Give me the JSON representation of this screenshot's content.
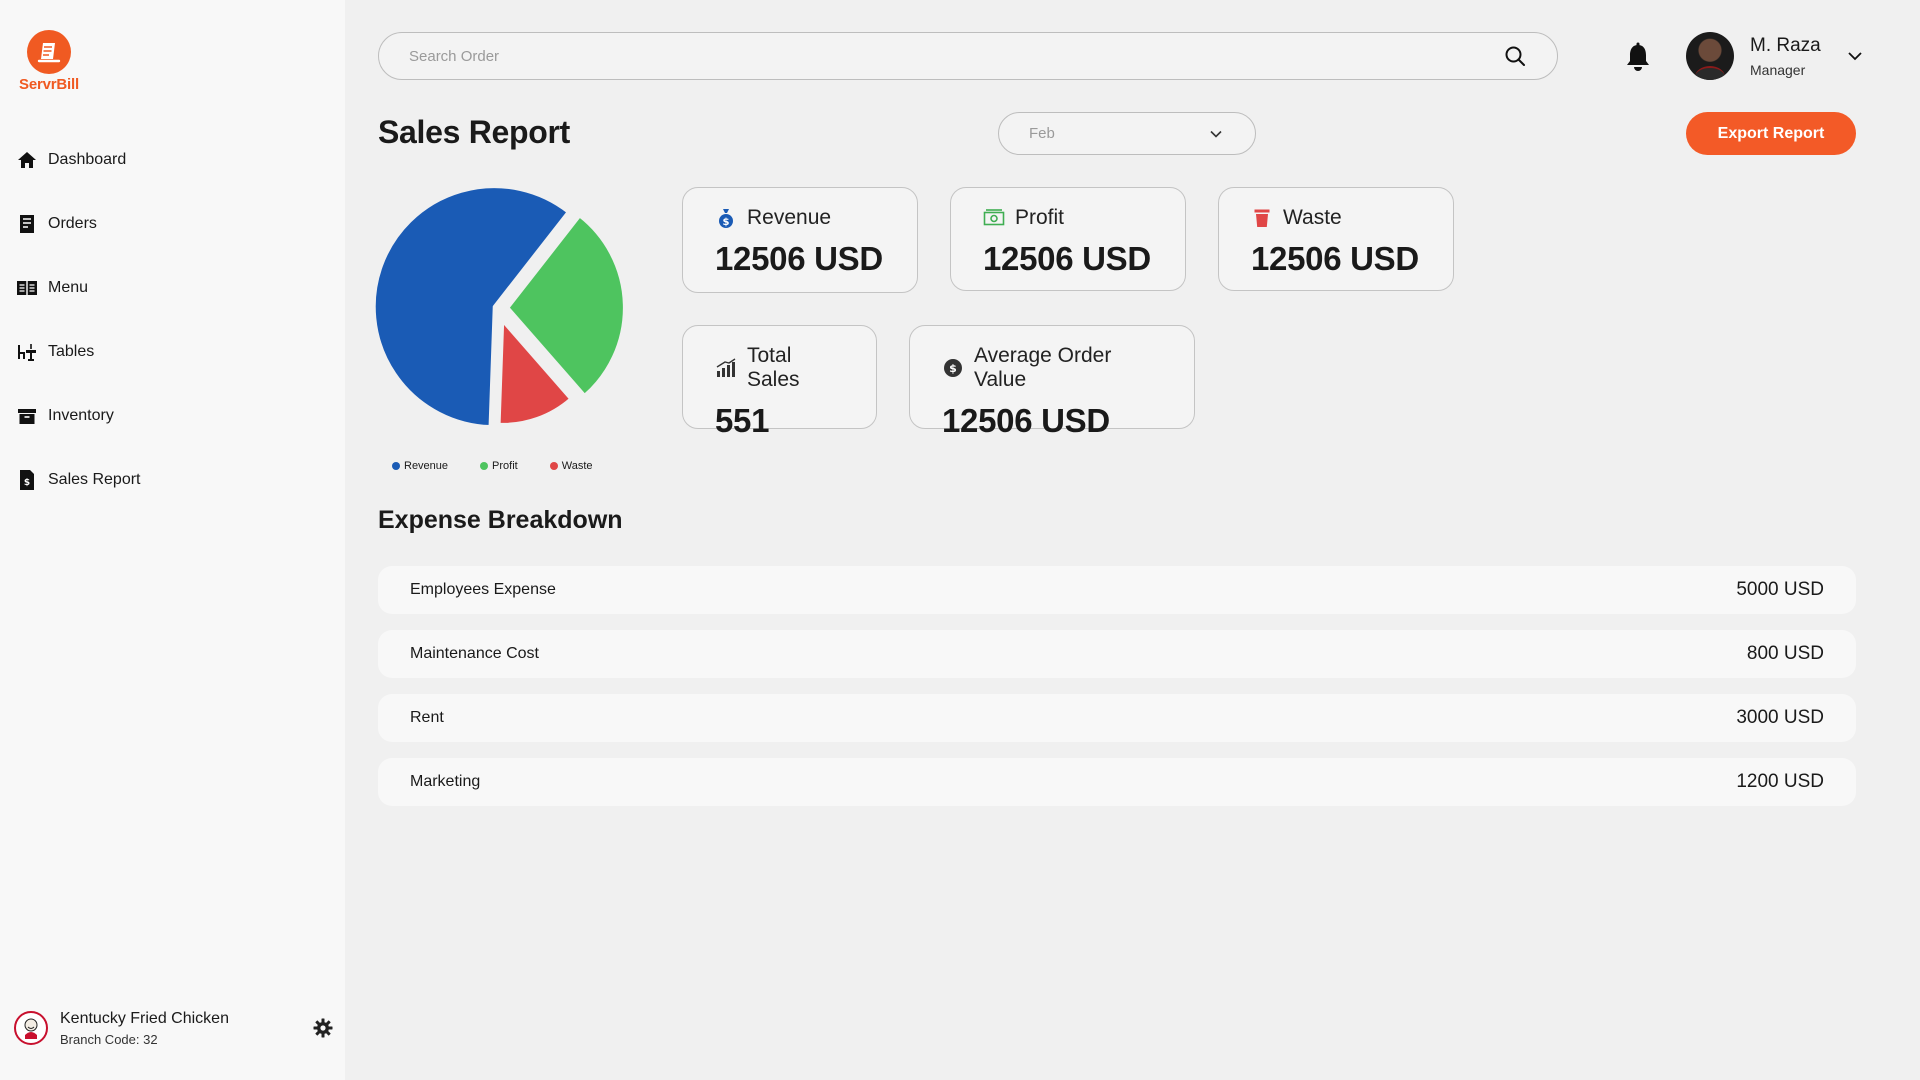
{
  "brand": {
    "name": "ServrBill",
    "color": "#f05a22"
  },
  "sidebar": {
    "items": [
      {
        "label": "Dashboard",
        "icon": "home-icon"
      },
      {
        "label": "Orders",
        "icon": "receipt-icon"
      },
      {
        "label": "Menu",
        "icon": "menu-book-icon"
      },
      {
        "label": "Tables",
        "icon": "table-chair-icon"
      },
      {
        "label": "Inventory",
        "icon": "archive-box-icon"
      },
      {
        "label": "Sales Report",
        "icon": "dollar-document-icon"
      }
    ],
    "branch": {
      "name": "Kentucky Fried Chicken",
      "code": "Branch Code: 32"
    }
  },
  "header": {
    "search_placeholder": "Search Order",
    "user": {
      "name": "M. Raza",
      "role": "Manager"
    }
  },
  "page": {
    "title": "Sales Report",
    "month_selected": "Feb",
    "export_label": "Export Report"
  },
  "chart_data": {
    "type": "pie",
    "categories": [
      "Revenue",
      "Profit",
      "Waste"
    ],
    "values": [
      60,
      28,
      12
    ],
    "colors": [
      "#1a5bb5",
      "#4ec45f",
      "#e04646"
    ],
    "legend_position": "bottom"
  },
  "stats": {
    "revenue": {
      "label": "Revenue",
      "value": "12506 USD"
    },
    "profit": {
      "label": "Profit",
      "value": "12506 USD"
    },
    "waste": {
      "label": "Waste",
      "value": "12506 USD"
    },
    "total_sales": {
      "label": "Total Sales",
      "value": "551"
    },
    "avg_order": {
      "label": "Average Order Value",
      "value": "12506 USD"
    }
  },
  "expenses": {
    "title": "Expense Breakdown",
    "rows": [
      {
        "name": "Employees Expense",
        "amount": "5000 USD"
      },
      {
        "name": "Maintenance Cost",
        "amount": "800 USD"
      },
      {
        "name": "Rent",
        "amount": "3000 USD"
      },
      {
        "name": "Marketing",
        "amount": "1200 USD"
      }
    ]
  }
}
